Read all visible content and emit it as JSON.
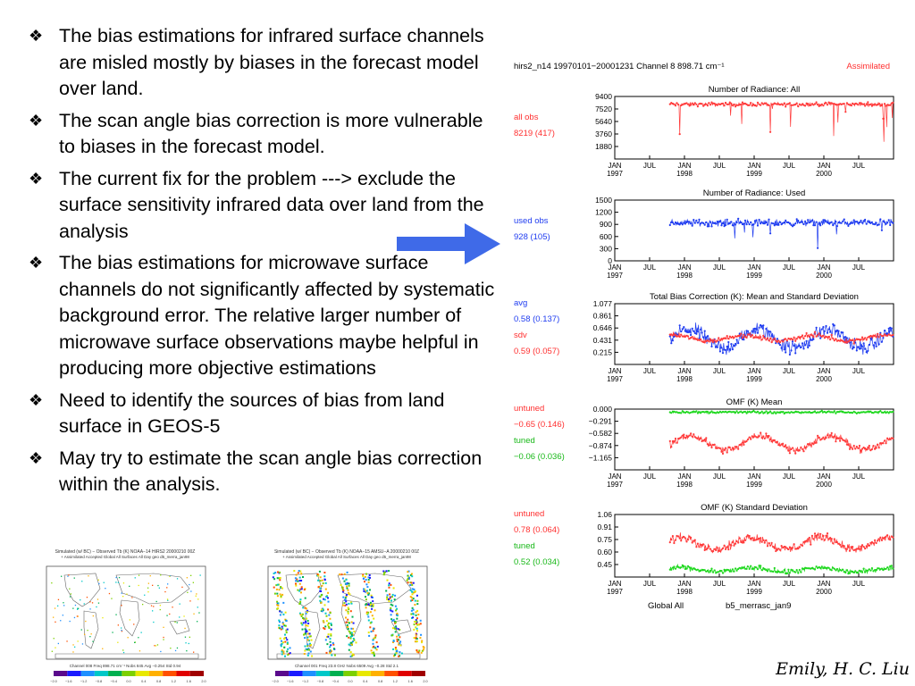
{
  "slide": {
    "bullet_glyph": "❖",
    "bullets": [
      "The bias estimations for infrared surface channels are misled mostly by biases in the forecast model over land.",
      "The scan angle bias correction is more vulnerable to biases in the forecast model.",
      "The current fix for the problem ---> exclude the surface sensitivity infrared data over land from the analysis",
      "The bias estimations for microwave surface channels do not significantly affected by systematic background error. The relative larger number of microwave surface observations maybe helpful in producing more objective estimations",
      "Need to identify the sources of  bias from land surface in GEOS-5",
      "May try to estimate the scan angle bias correction within the analysis."
    ],
    "arrow_color": "#3f6ae8",
    "signature": "Emily, H. C. Liu"
  },
  "figure": {
    "header": {
      "left": "hirs2_n14  19970101−20001231    Channel  8    898.71  cm⁻¹",
      "right": "Assimilated",
      "right_color": "#ff3030"
    },
    "x_ticks": [
      {
        "month": "JAN",
        "year": "1997"
      },
      {
        "month": "JUL",
        "year": ""
      },
      {
        "month": "JAN",
        "year": "1998"
      },
      {
        "month": "JUL",
        "year": ""
      },
      {
        "month": "JAN",
        "year": "1999"
      },
      {
        "month": "JUL",
        "year": ""
      },
      {
        "month": "JAN",
        "year": "2000"
      },
      {
        "month": "JUL",
        "year": ""
      }
    ],
    "footer": {
      "left": "Global   All",
      "right": "b5_merrasc_jan9"
    },
    "colors": {
      "red": "#ff3a3a",
      "blue": "#1f3cf0",
      "green": "#1fd81f"
    }
  },
  "chart_data": [
    {
      "type": "line",
      "title": "Number  of  Radiance:  All",
      "yticks": [
        "9400",
        "7520",
        "5640",
        "3760",
        "1880"
      ],
      "ylim": [
        0,
        9400
      ],
      "x_range": [
        "1997-01",
        "2000-12"
      ],
      "series": [
        {
          "name": "all  obs",
          "color": "red",
          "mean": 8219,
          "std": 417
        }
      ],
      "annotations": [
        {
          "text": "all  obs",
          "color": "#ff3030"
        },
        {
          "text": "8219  (417)",
          "color": "#ff3030"
        }
      ]
    },
    {
      "type": "line",
      "title": "Number  of  Radiance:  Used",
      "yticks": [
        "1500",
        "1200",
        "900",
        "600",
        "300",
        "0"
      ],
      "ylim": [
        0,
        1500
      ],
      "x_range": [
        "1997-01",
        "2000-12"
      ],
      "series": [
        {
          "name": "used  obs",
          "color": "blue",
          "mean": 928,
          "std": 105
        }
      ],
      "annotations": [
        {
          "text": "used  obs",
          "color": "#1f3cf0"
        },
        {
          "text": "928  (105)",
          "color": "#1f3cf0"
        }
      ]
    },
    {
      "type": "line",
      "title": "Total  Bias  Correction  (K):  Mean  and  Standard  Deviation",
      "yticks": [
        "1.077",
        "0.861",
        "0.646",
        "0.431",
        "0.215"
      ],
      "ylim": [
        0.215,
        1.077
      ],
      "x_range": [
        "1997-01",
        "2000-12"
      ],
      "series": [
        {
          "name": "avg",
          "color": "blue",
          "mean": 0.58,
          "std": 0.137
        },
        {
          "name": "sdv",
          "color": "red",
          "mean": 0.59,
          "std": 0.057
        }
      ],
      "annotations": [
        {
          "text": "avg",
          "color": "#1f3cf0"
        },
        {
          "text": "0.58  (0.137)",
          "color": "#1f3cf0"
        },
        {
          "text": "sdv",
          "color": "#ff3030"
        },
        {
          "text": "0.59  (0.057)",
          "color": "#ff3030"
        }
      ]
    },
    {
      "type": "line",
      "title": "OMF  (K)  Mean",
      "yticks": [
        "0.000",
        "−0.291",
        "−0.582",
        "−0.874",
        "−1.165"
      ],
      "ylim": [
        -1.165,
        0
      ],
      "x_range": [
        "1997-01",
        "2000-12"
      ],
      "series": [
        {
          "name": "untuned",
          "color": "red",
          "mean": -0.65,
          "std": 0.146
        },
        {
          "name": "tuned",
          "color": "green",
          "mean": -0.06,
          "std": 0.036
        }
      ],
      "annotations": [
        {
          "text": "untuned",
          "color": "#ff3030"
        },
        {
          "text": "−0.65  (0.146)",
          "color": "#ff3030"
        },
        {
          "text": "tuned",
          "color": "#18b818"
        },
        {
          "text": "−0.06  (0.036)",
          "color": "#18b818"
        }
      ]
    },
    {
      "type": "line",
      "title": "OMF  (K)  Standard  Deviation",
      "yticks": [
        "1.06",
        "0.91",
        "0.75",
        "0.60",
        "0.45"
      ],
      "ylim": [
        0.45,
        1.06
      ],
      "x_range": [
        "1997-01",
        "2000-12"
      ],
      "series": [
        {
          "name": "untuned",
          "color": "red",
          "mean": 0.78,
          "std": 0.064
        },
        {
          "name": "tuned",
          "color": "green",
          "mean": 0.52,
          "std": 0.034
        }
      ],
      "annotations": [
        {
          "text": "untuned",
          "color": "#ff3030"
        },
        {
          "text": "0.78  (0.064)",
          "color": "#ff3030"
        },
        {
          "text": "tuned",
          "color": "#18b818"
        },
        {
          "text": "0.52  (0.034)",
          "color": "#18b818"
        }
      ]
    }
  ],
  "maps": [
    {
      "title1": "Simulated (w/ BC) − Observed Tb (K)   NOAA−14 HIRS2 20000210 00Z",
      "title2": "+ Assimilated   Accepted   Global   All Surfaces   All Day   geo  d5_merra_jan98",
      "footer": "Channel 008  Freq  898.71 cm⁻¹  Nobs  845  Avg −0.254  Std  0.94",
      "cbar": [
        "−2.0",
        "−1.6",
        "−1.2",
        "−0.8",
        "−0.4",
        "0.0",
        "0.4",
        "0.8",
        "1.2",
        "1.6",
        "2.0"
      ]
    },
    {
      "title1": "Simulated (w/ BC) − Observed Tb (K)   NOAA−15 AMSU−A 20000210 00Z",
      "title2": "+ Assimilated   Accepted   Global   All Surfaces   All Day   geo  d5_merra_jan98",
      "footer": "Channel 001  Freq  23.8 GHz  Nobs  6509  Avg −0.28  Std  2.1",
      "cbar": [
        "−2.0",
        "−1.6",
        "−1.2",
        "−0.8",
        "−0.4",
        "0.0",
        "0.4",
        "0.8",
        "1.2",
        "1.6",
        "2.0"
      ]
    }
  ]
}
